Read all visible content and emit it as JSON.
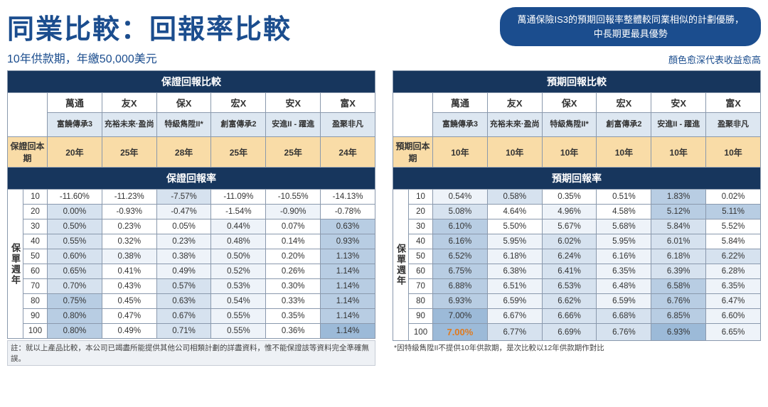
{
  "title": "同業比較：回報率比較",
  "subtitle": "10年供款期，年繳50,000美元",
  "pill_line1": "萬通保險IS3的預期回報率整體較同業相似的計劃優勝，",
  "pill_line2": "中長期更最具優勢",
  "legend_note": "顏色愈深代表收益愈高",
  "colors": {
    "header_dark": "#17365d",
    "tan": "#f9dca7",
    "shade0": "#ffffff",
    "shade1": "#eef3f9",
    "shade2": "#d6e2ef",
    "shade3": "#b8cde3",
    "shade4": "#9cbad8",
    "accent_orange": "#e07a1e"
  },
  "companies": [
    "萬通",
    "友X",
    "保X",
    "宏X",
    "安X",
    "富X"
  ],
  "products": [
    "富饒傳承3",
    "充裕未來·盈尚",
    "特級雋陞II*",
    "創富傳承2",
    "安進II - 躍進",
    "盈聚非凡"
  ],
  "left": {
    "title": "保證回報比較",
    "payback_label": "保證回本期",
    "payback": [
      "20年",
      "25年",
      "28年",
      "25年",
      "25年",
      "24年"
    ],
    "rate_header": "保證回報率",
    "side_label": "保單週年",
    "years": [
      10,
      20,
      30,
      40,
      50,
      60,
      70,
      80,
      90,
      100
    ],
    "values": [
      [
        "-11.60%",
        "-11.23%",
        "-7.57%",
        "-11.09%",
        "-10.55%",
        "-14.13%"
      ],
      [
        "0.00%",
        "-0.93%",
        "-0.47%",
        "-1.54%",
        "-0.90%",
        "-0.78%"
      ],
      [
        "0.50%",
        "0.23%",
        "0.05%",
        "0.44%",
        "0.07%",
        "0.63%"
      ],
      [
        "0.55%",
        "0.32%",
        "0.23%",
        "0.48%",
        "0.14%",
        "0.93%"
      ],
      [
        "0.60%",
        "0.38%",
        "0.38%",
        "0.50%",
        "0.20%",
        "1.13%"
      ],
      [
        "0.65%",
        "0.41%",
        "0.49%",
        "0.52%",
        "0.26%",
        "1.14%"
      ],
      [
        "0.70%",
        "0.43%",
        "0.57%",
        "0.53%",
        "0.30%",
        "1.14%"
      ],
      [
        "0.75%",
        "0.45%",
        "0.63%",
        "0.54%",
        "0.33%",
        "1.14%"
      ],
      [
        "0.80%",
        "0.47%",
        "0.67%",
        "0.55%",
        "0.35%",
        "1.14%"
      ],
      [
        "0.80%",
        "0.49%",
        "0.71%",
        "0.55%",
        "0.36%",
        "1.14%"
      ]
    ],
    "shades": [
      [
        0,
        0,
        2,
        0,
        0,
        0
      ],
      [
        2,
        0,
        1,
        0,
        1,
        0
      ],
      [
        2,
        0,
        0,
        1,
        0,
        3
      ],
      [
        2,
        0,
        1,
        1,
        0,
        3
      ],
      [
        2,
        1,
        1,
        1,
        0,
        3
      ],
      [
        2,
        0,
        1,
        1,
        0,
        3
      ],
      [
        2,
        0,
        2,
        1,
        0,
        3
      ],
      [
        3,
        0,
        2,
        1,
        0,
        3
      ],
      [
        3,
        0,
        2,
        1,
        0,
        3
      ],
      [
        3,
        0,
        2,
        1,
        0,
        4
      ]
    ],
    "footnote": "註：就以上產品比較，本公司已竭盡所能提供其他公司相類計劃的詳盡資料，惟不能保證該等資料完全準確無誤。"
  },
  "right": {
    "title": "預期回報比較",
    "payback_label": "預期回本期",
    "payback": [
      "10年",
      "10年",
      "10年",
      "10年",
      "10年",
      "10年"
    ],
    "rate_header": "預期回報率",
    "side_label": "保單週年",
    "years": [
      10,
      20,
      30,
      40,
      50,
      60,
      70,
      80,
      90,
      100
    ],
    "values": [
      [
        "0.54%",
        "0.58%",
        "0.35%",
        "0.51%",
        "1.83%",
        "0.02%"
      ],
      [
        "5.08%",
        "4.64%",
        "4.96%",
        "4.58%",
        "5.12%",
        "5.11%"
      ],
      [
        "6.10%",
        "5.50%",
        "5.67%",
        "5.68%",
        "5.84%",
        "5.52%"
      ],
      [
        "6.16%",
        "5.95%",
        "6.02%",
        "5.95%",
        "6.01%",
        "5.84%"
      ],
      [
        "6.52%",
        "6.18%",
        "6.24%",
        "6.16%",
        "6.18%",
        "6.22%"
      ],
      [
        "6.75%",
        "6.38%",
        "6.41%",
        "6.35%",
        "6.39%",
        "6.28%"
      ],
      [
        "6.88%",
        "6.51%",
        "6.53%",
        "6.48%",
        "6.58%",
        "6.35%"
      ],
      [
        "6.93%",
        "6.59%",
        "6.62%",
        "6.59%",
        "6.76%",
        "6.47%"
      ],
      [
        "7.00%",
        "6.67%",
        "6.66%",
        "6.68%",
        "6.85%",
        "6.60%"
      ],
      [
        "7.00%",
        "6.77%",
        "6.69%",
        "6.76%",
        "6.93%",
        "6.65%"
      ]
    ],
    "shades": [
      [
        1,
        2,
        0,
        0,
        3,
        0
      ],
      [
        2,
        0,
        1,
        0,
        3,
        3
      ],
      [
        3,
        0,
        1,
        1,
        2,
        0
      ],
      [
        3,
        1,
        2,
        1,
        2,
        0
      ],
      [
        3,
        1,
        2,
        1,
        2,
        2
      ],
      [
        3,
        1,
        2,
        1,
        2,
        1
      ],
      [
        3,
        1,
        2,
        1,
        3,
        1
      ],
      [
        3,
        1,
        2,
        1,
        3,
        1
      ],
      [
        4,
        1,
        2,
        2,
        3,
        1
      ],
      [
        4,
        2,
        2,
        2,
        4,
        1
      ]
    ],
    "highlight": {
      "row": 9,
      "col": 0
    },
    "footnote": "*因特級雋陞II不提供10年供款期，是次比較以12年供款期作對比"
  }
}
